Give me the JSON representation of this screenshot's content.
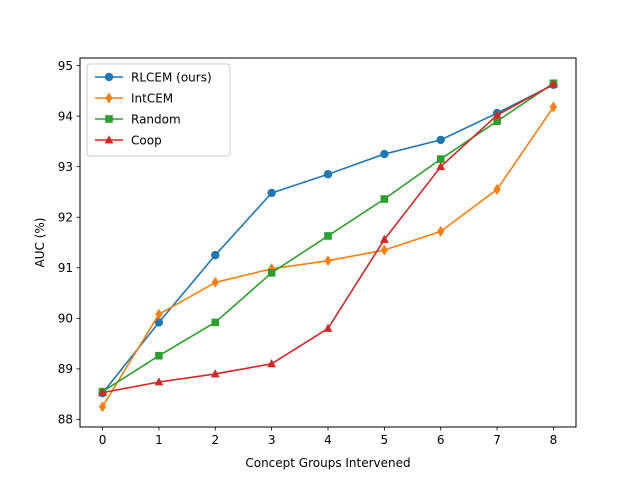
{
  "chart_data": {
    "type": "line",
    "title": "",
    "xlabel": "Concept Groups Intervened",
    "ylabel": "AUC (%)",
    "x": [
      0,
      1,
      2,
      3,
      4,
      5,
      6,
      7,
      8
    ],
    "xlim": [
      -0.4,
      8.4
    ],
    "ylim": [
      87.85,
      95.15
    ],
    "xticks": [
      0,
      1,
      2,
      3,
      4,
      5,
      6,
      7,
      8
    ],
    "yticks": [
      88,
      89,
      90,
      91,
      92,
      93,
      94,
      95
    ],
    "grid": false,
    "legend_position": "top-left",
    "series": [
      {
        "name": "RLCEM (ours)",
        "color": "#1f77b4",
        "marker": "circle",
        "values": [
          88.52,
          89.92,
          91.25,
          92.48,
          92.85,
          93.25,
          93.53,
          94.06,
          94.62
        ]
      },
      {
        "name": "IntCEM",
        "color": "#ff7f0e",
        "marker": "diamond",
        "values": [
          88.25,
          90.08,
          90.71,
          90.98,
          91.14,
          91.35,
          91.72,
          92.55,
          94.18
        ]
      },
      {
        "name": "Random",
        "color": "#2ca02c",
        "marker": "square",
        "values": [
          88.55,
          89.26,
          89.92,
          90.9,
          91.63,
          92.36,
          93.15,
          93.9,
          94.65
        ]
      },
      {
        "name": "Coop",
        "color": "#d62728",
        "marker": "triangle",
        "values": [
          88.53,
          88.74,
          88.9,
          89.1,
          89.8,
          91.56,
          93.0,
          94.02,
          94.63
        ]
      }
    ]
  }
}
